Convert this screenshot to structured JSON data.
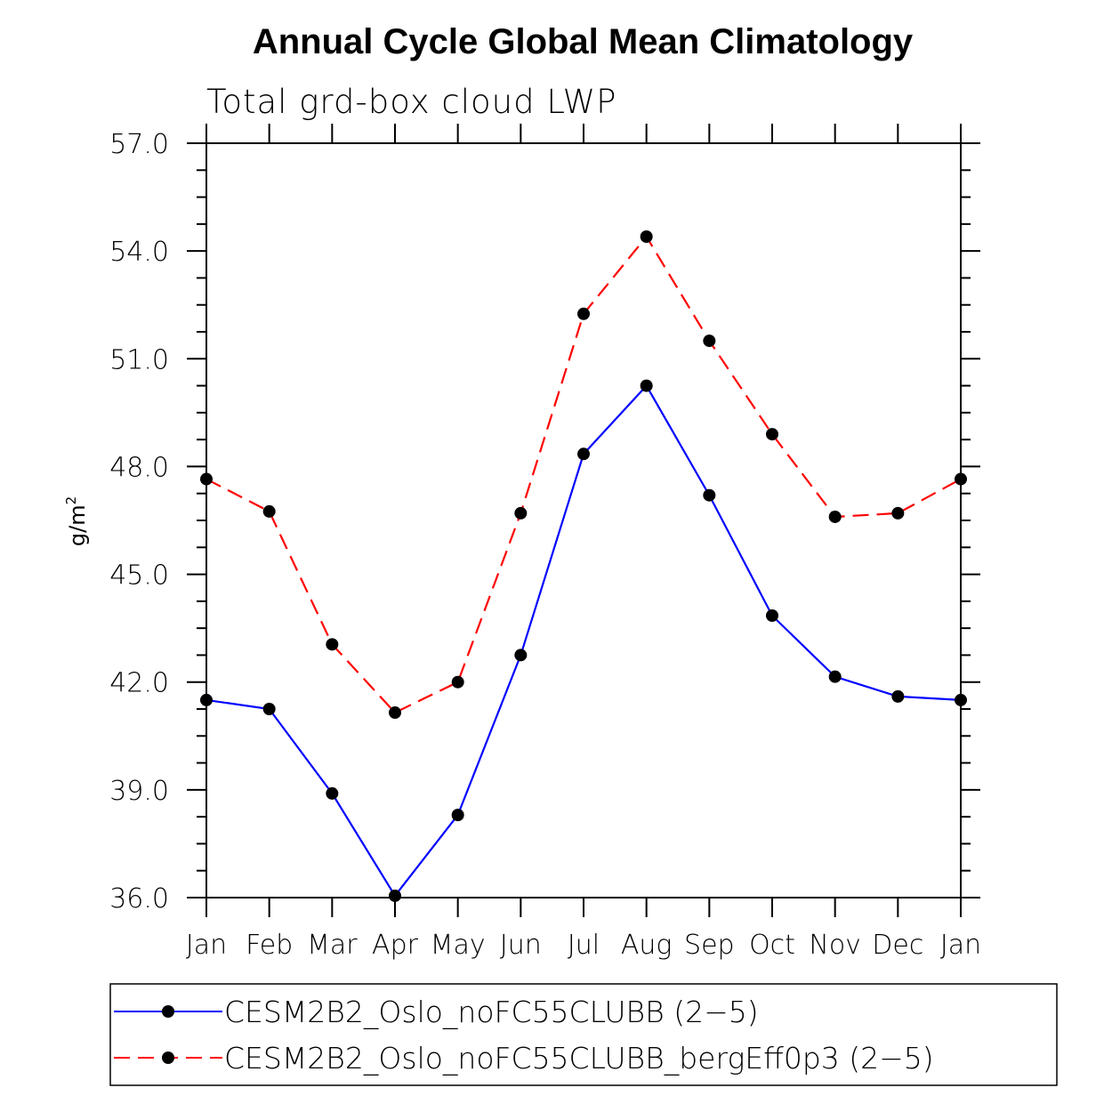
{
  "chart_data": {
    "type": "line",
    "title": "Annual Cycle Global Mean Climatology",
    "subtitle": "Total grd-box cloud LWP",
    "ylabel": "g/m",
    "ylabel_superscript": "2",
    "xlabel": "",
    "ylim": [
      36.0,
      57.0
    ],
    "y_ticks": [
      "36.0",
      "39.0",
      "42.0",
      "45.0",
      "48.0",
      "51.0",
      "54.0",
      "57.0"
    ],
    "categories": [
      "Jan",
      "Feb",
      "Mar",
      "Apr",
      "May",
      "Jun",
      "Jul",
      "Aug",
      "Sep",
      "Oct",
      "Nov",
      "Dec",
      "Jan"
    ],
    "series": [
      {
        "name": "CESM2B2_Oslo_noFC55CLUBB (2−5)",
        "color": "#0000ff",
        "dash": "solid",
        "values": [
          41.5,
          41.25,
          38.9,
          36.05,
          38.3,
          42.75,
          48.35,
          50.25,
          47.2,
          43.85,
          42.15,
          41.6,
          41.5
        ]
      },
      {
        "name": "CESM2B2_Oslo_noFC55CLUBB_bergEff0p3 (2−5)",
        "color": "#ff0000",
        "dash": "dashed",
        "values": [
          47.65,
          46.75,
          43.05,
          41.15,
          42.0,
          46.7,
          52.25,
          54.4,
          51.5,
          48.9,
          46.6,
          46.7,
          47.65
        ]
      }
    ],
    "legend_position": "bottom"
  }
}
